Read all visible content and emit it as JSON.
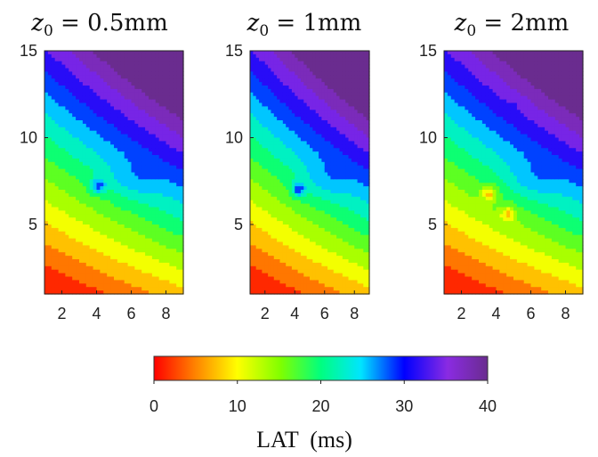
{
  "chart_data": {
    "type": "heatmap",
    "subtype": "filled-contour",
    "colormap": "jet",
    "panels": [
      {
        "title_var": "z",
        "title_sub": "0",
        "title_rest": " = 0.5mm",
        "x_ticks": [
          "2",
          "4",
          "6",
          "8"
        ],
        "y_ticks": [
          "5",
          "10",
          "15"
        ],
        "xlim": [
          1,
          9
        ],
        "ylim": [
          1,
          15
        ],
        "features": [
          {
            "x": 4.1,
            "y": 7.2,
            "value": 28,
            "kind": "local-max"
          }
        ]
      },
      {
        "title_var": "z",
        "title_sub": "0",
        "title_rest": " = 1mm",
        "x_ticks": [
          "2",
          "4",
          "6",
          "8"
        ],
        "y_ticks": [
          "5",
          "10",
          "15"
        ],
        "xlim": [
          1,
          9
        ],
        "ylim": [
          1,
          15
        ],
        "features": [
          {
            "x": 4.25,
            "y": 7.0,
            "value": 29,
            "kind": "local-max"
          }
        ]
      },
      {
        "title_var": "z",
        "title_sub": "0",
        "title_rest": " = 2mm",
        "x_ticks": [
          "2",
          "4",
          "6",
          "8"
        ],
        "y_ticks": [
          "5",
          "10",
          "15"
        ],
        "xlim": [
          1,
          9
        ],
        "ylim": [
          1,
          15
        ],
        "features": [
          {
            "x": 3.6,
            "y": 6.8,
            "value": 8,
            "kind": "local-min"
          },
          {
            "x": 4.7,
            "y": 5.6,
            "value": 8,
            "kind": "local-min"
          },
          {
            "x": 5.1,
            "y": 12.0,
            "value": 33,
            "kind": "local-max"
          }
        ]
      }
    ],
    "colorbar": {
      "label": "LAT  (ms)",
      "ticks": [
        "0",
        "10",
        "20",
        "30",
        "40"
      ],
      "range": [
        0,
        40
      ]
    }
  }
}
